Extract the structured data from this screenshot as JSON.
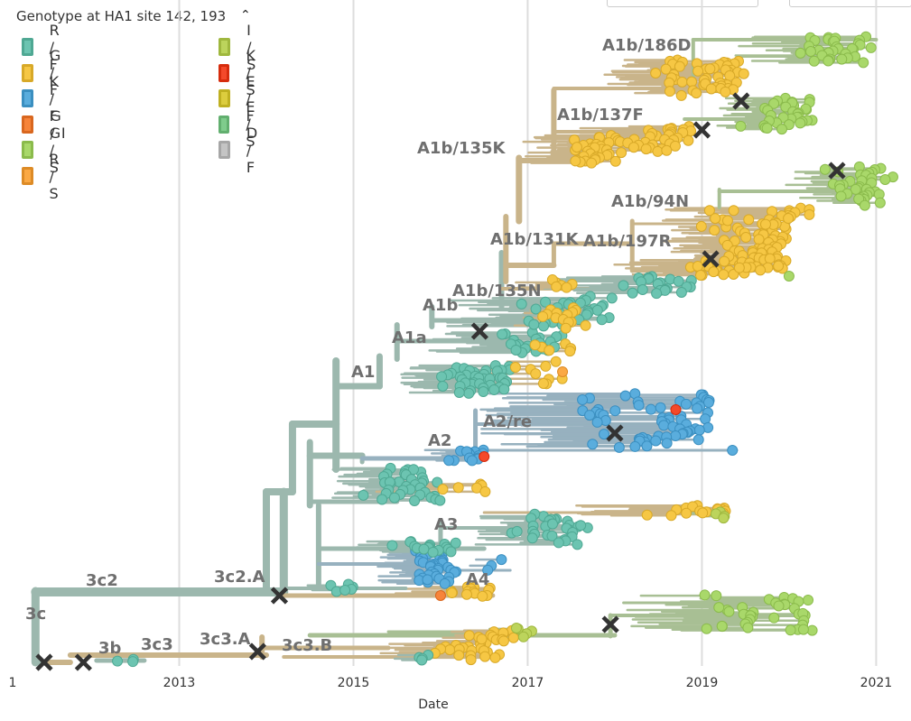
{
  "legend": {
    "title": "Genotype at HA1 site 142, 193",
    "items": [
      {
        "label": "R / F",
        "color": "#6cc4b1",
        "border": "#4fa893"
      },
      {
        "label": "G / F",
        "color": "#f6c744",
        "border": "#d8a928"
      },
      {
        "label": "K / F",
        "color": "#5aaddd",
        "border": "#3b8fc0"
      },
      {
        "label": "G / I",
        "color": "#f7843a",
        "border": "#d9671f"
      },
      {
        "label": "G / S",
        "color": "#a9d86a",
        "border": "#8bbb4c"
      },
      {
        "label": "R / S",
        "color": "#fba944",
        "border": "#dd8b26"
      },
      {
        "label": "I / S",
        "color": "#bcd45c",
        "border": "#9fb73e"
      },
      {
        "label": "K / S",
        "color": "#f4492a",
        "border": "#d62c0d"
      },
      {
        "label": "E / F",
        "color": "#dccd3e",
        "border": "#bfb021"
      },
      {
        "label": "E / S",
        "color": "#7fcc8c",
        "border": "#62af6f"
      },
      {
        "label": "D / F",
        "color": "#c4c4c4",
        "border": "#a6a6a6"
      }
    ]
  },
  "chart_data": {
    "type": "phylogenetic-tree",
    "xlabel": "Date",
    "x_ticks": [
      "1",
      "2013",
      "2015",
      "2017",
      "2019",
      "2021"
    ],
    "xlim": [
      2011.15,
      2021.4
    ],
    "grid": true,
    "branch_colors": {
      "teal": "#9cb8ae",
      "tan": "#c9b48a",
      "green": "#a8bf94",
      "steel": "#97b1bf"
    },
    "clades": [
      {
        "label": "3c",
        "date": 2011.3
      },
      {
        "label": "3c2",
        "date": 2011.9
      },
      {
        "label": "3b",
        "date": 2012.3
      },
      {
        "label": "3c3",
        "date": 2012.7
      },
      {
        "label": "3c2.A",
        "date": 2013.7
      },
      {
        "label": "3c3.A",
        "date": 2013.5
      },
      {
        "label": "3c3.B",
        "date": 2014.4
      },
      {
        "label": "A1",
        "date": 2015.1
      },
      {
        "label": "A1a",
        "date": 2015.6
      },
      {
        "label": "A1b",
        "date": 2016.0
      },
      {
        "label": "A1b/135N",
        "date": 2016.5
      },
      {
        "label": "A1b/135K",
        "date": 2015.9
      },
      {
        "label": "A1b/131K",
        "date": 2016.8
      },
      {
        "label": "A1b/197R",
        "date": 2017.8
      },
      {
        "label": "A1b/94N",
        "date": 2018.1
      },
      {
        "label": "A1b/137F",
        "date": 2017.5
      },
      {
        "label": "A1b/186D",
        "date": 2018.2
      },
      {
        "label": "A2",
        "date": 2016.0
      },
      {
        "label": "A2/re",
        "date": 2016.7
      },
      {
        "label": "A3",
        "date": 2016.0
      },
      {
        "label": "A4",
        "date": 2016.5
      }
    ],
    "markers": [
      2011.45,
      2011.9,
      2013.9,
      2014.15,
      2016.45,
      2018.0,
      2019.0,
      2019.45,
      2020.55,
      2019.1,
      2017.95
    ]
  }
}
